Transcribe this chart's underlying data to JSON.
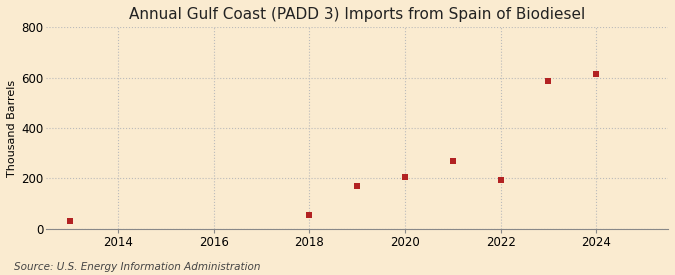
{
  "title": "Annual Gulf Coast (PADD 3) Imports from Spain of Biodiesel",
  "ylabel": "Thousand Barrels",
  "source": "Source: U.S. Energy Information Administration",
  "background_color": "#faebd0",
  "plot_background_color": "#faebd0",
  "marker_color": "#b22222",
  "marker_size": 4,
  "marker_style": "s",
  "years": [
    2013,
    2018,
    2019,
    2020,
    2021,
    2022,
    2023,
    2024
  ],
  "values": [
    30,
    55,
    170,
    205,
    270,
    193,
    585,
    613
  ],
  "xlim": [
    2012.5,
    2025.5
  ],
  "ylim": [
    0,
    800
  ],
  "yticks": [
    0,
    200,
    400,
    600,
    800
  ],
  "xticks": [
    2014,
    2016,
    2018,
    2020,
    2022,
    2024
  ],
  "grid_color": "#bbbbbb",
  "grid_style": ":",
  "title_fontsize": 11,
  "label_fontsize": 8,
  "tick_fontsize": 8.5,
  "source_fontsize": 7.5
}
